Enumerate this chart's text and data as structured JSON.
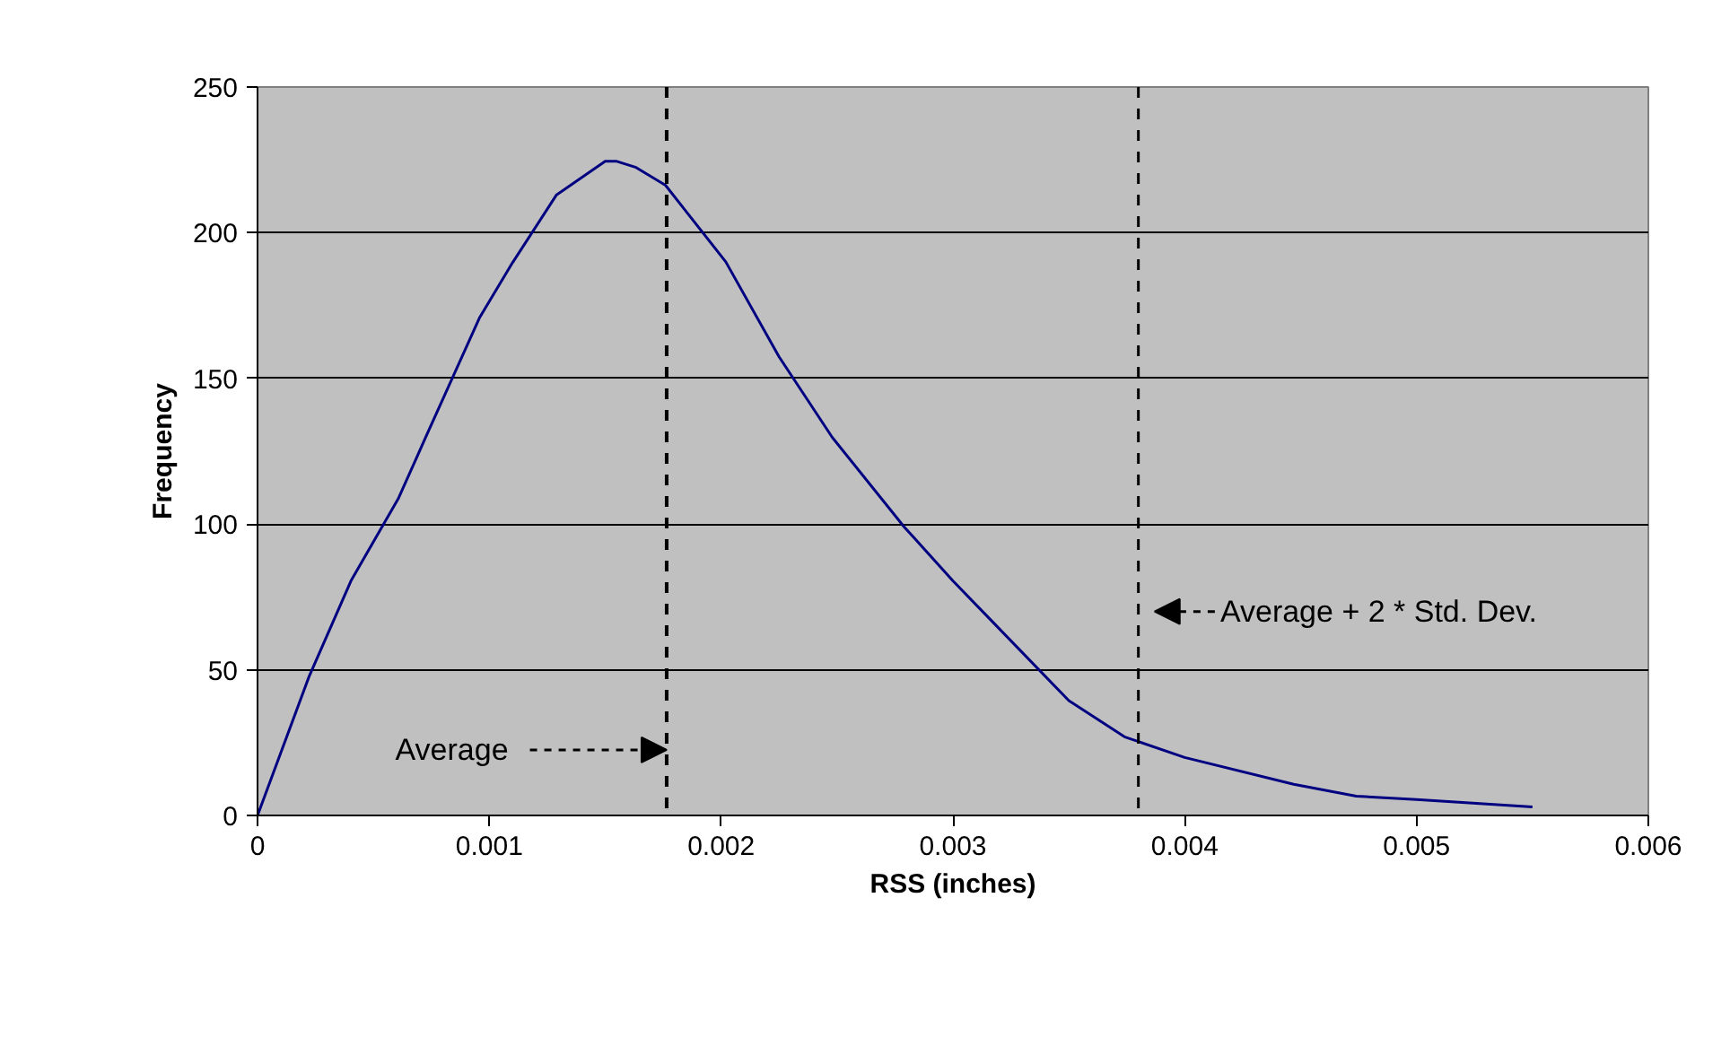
{
  "chart_data": {
    "type": "line",
    "xlabel": "RSS (inches)",
    "ylabel": "Frequency",
    "x": [
      0,
      0.000222,
      0.000403,
      0.000609,
      0.000725,
      0.000957,
      0.0011,
      0.00129,
      0.0015,
      0.00155,
      0.00163,
      0.00176,
      0.00202,
      0.00225,
      0.00248,
      0.00279,
      0.003,
      0.00314,
      0.0035,
      0.00374,
      0.004,
      0.00447,
      0.00474,
      0.005,
      0.0055
    ],
    "series": [
      {
        "color": "#000080",
        "values": [
          0,
          47.6,
          80.5,
          109,
          129.7,
          170.7,
          189.7,
          213,
          224.5,
          224.5,
          222.5,
          216.3,
          190,
          157.4,
          129.7,
          99,
          80.5,
          69,
          39.4,
          27,
          19.9,
          10.7,
          6.6,
          5.5,
          2.9
        ]
      }
    ],
    "xlim": [
      0,
      0.006
    ],
    "xticks": [
      0,
      0.001,
      0.002,
      0.003,
      0.004,
      0.005,
      0.006
    ],
    "ylim": [
      0,
      250
    ],
    "yticks": [
      0,
      50,
      100,
      150,
      200,
      250
    ],
    "grid": "y",
    "marker": "none",
    "line_style": "solid",
    "ref_lines": [
      {
        "axis": "x",
        "value": 0.001765,
        "label": "Average",
        "color": "#000000",
        "line_style": "dashed"
      },
      {
        "axis": "x",
        "value": 0.0038,
        "label": "Average + 2 * Std. Dev.",
        "color": "#000000",
        "line_style": "dashed"
      }
    ]
  }
}
